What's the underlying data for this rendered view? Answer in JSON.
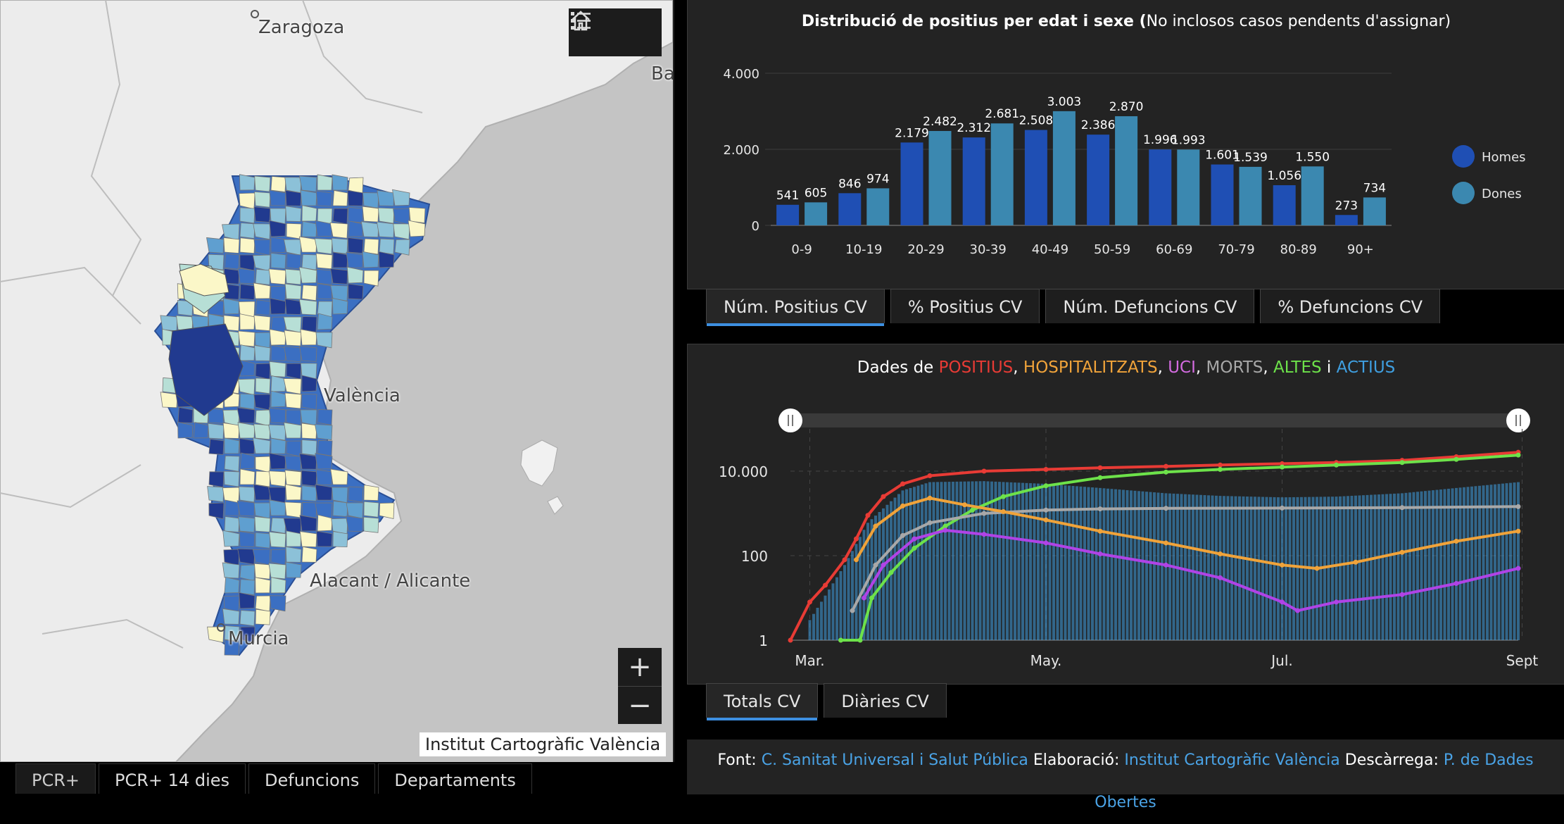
{
  "map": {
    "cities": [
      "Zaragoza",
      "Ba",
      "València",
      "Alacant / Alicante",
      "Murcia"
    ],
    "attribution": "Institut Cartogràfic València",
    "toolbar": {
      "home_icon": "home-icon",
      "legend_icon": "legend-list-icon"
    },
    "zoom": {
      "in_label": "+",
      "out_label": "−"
    },
    "tabs": [
      "PCR+",
      "PCR+ 14 dies",
      "Defuncions",
      "Departaments"
    ],
    "legend_colors": [
      "#fbf7c8",
      "#b7dfd6",
      "#8cc1d8",
      "#5f9fd0",
      "#3b6fc2",
      "#213a8f"
    ]
  },
  "bar_panel": {
    "title_bold": "Distribució de positius per edat i sexe (",
    "title_rest": "No inclosos casos pendents d'assignar)",
    "tabs": [
      "Núm. Positius CV",
      "% Positius CV",
      "Núm. Defuncions CV",
      "% Defuncions CV"
    ],
    "legend": [
      "Homes",
      "Dones"
    ]
  },
  "line_panel": {
    "title_parts": [
      {
        "text": "Dades de ",
        "color": "#ffffff"
      },
      {
        "text": "POSITIUS",
        "color": "#e83b35"
      },
      {
        "text": ", ",
        "color": "#ffffff"
      },
      {
        "text": "HOSPITALITZATS",
        "color": "#f0a33a"
      },
      {
        "text": ", ",
        "color": "#ffffff"
      },
      {
        "text": "UCI",
        "color": "#d36be0"
      },
      {
        "text": ", ",
        "color": "#ffffff"
      },
      {
        "text": "MORTS",
        "color": "#a8a8a8"
      },
      {
        "text": ", ",
        "color": "#ffffff"
      },
      {
        "text": "ALTES",
        "color": "#6de24a"
      },
      {
        "text": " i ",
        "color": "#ffffff"
      },
      {
        "text": "ACTIUS",
        "color": "#3f9fe0"
      }
    ],
    "tabs": [
      "Totals CV",
      "Diàries CV"
    ]
  },
  "footer": {
    "font_label": "Font: ",
    "font_link": "C. Sanitat Universal i Salut Pública",
    "elab_label": " Elaboració: ",
    "elab_link": "Institut Cartogràfic València",
    "desc_label": " Descàrrega: ",
    "desc_link": "P. de Dades Obertes"
  },
  "chart_data": [
    {
      "type": "bar",
      "categories": [
        "0-9",
        "10-19",
        "20-29",
        "30-39",
        "40-49",
        "50-59",
        "60-69",
        "70-79",
        "80-89",
        "90+"
      ],
      "series": [
        {
          "name": "Homes",
          "values": [
            541,
            846,
            2179,
            2312,
            2508,
            2386,
            1996,
            1601,
            1056,
            273
          ],
          "labels": [
            "541",
            "846",
            "2.179",
            "2.312",
            "2.508",
            "2.386",
            "1.996",
            "1.601",
            "1.056",
            "273"
          ],
          "color": "#1f4fb4"
        },
        {
          "name": "Dones",
          "values": [
            605,
            974,
            2482,
            2681,
            3003,
            2870,
            1993,
            1539,
            1550,
            734
          ],
          "labels": [
            "605",
            "974",
            "2.482",
            "2.681",
            "3.003",
            "2.870",
            "1.993",
            "1.539",
            "1.550",
            "734"
          ],
          "color": "#3b88b0"
        }
      ],
      "yticks": [
        0,
        2000,
        4000
      ],
      "ytick_labels": [
        "0",
        "2.000",
        "4.000"
      ],
      "ylim": [
        0,
        4000
      ],
      "legend_position": "right"
    },
    {
      "type": "line",
      "scale": "log",
      "x_ticks": [
        "Mar.",
        "May.",
        "Jul.",
        "Sept"
      ],
      "yticks": [
        1,
        100,
        10000
      ],
      "ytick_labels": [
        "1",
        "100",
        "10.000"
      ],
      "x_range": [
        "2020-02-25",
        "2020-08-31"
      ],
      "series": [
        {
          "name": "POSITIUS",
          "color": "#e83b35",
          "points": [
            [
              "2020-02-25",
              1
            ],
            [
              "2020-03-01",
              8
            ],
            [
              "2020-03-05",
              20
            ],
            [
              "2020-03-10",
              80
            ],
            [
              "2020-03-13",
              250
            ],
            [
              "2020-03-16",
              900
            ],
            [
              "2020-03-20",
              2500
            ],
            [
              "2020-03-25",
              5000
            ],
            [
              "2020-04-01",
              7800
            ],
            [
              "2020-04-15",
              10000
            ],
            [
              "2020-05-01",
              11000
            ],
            [
              "2020-05-15",
              12000
            ],
            [
              "2020-06-01",
              13000
            ],
            [
              "2020-06-15",
              14000
            ],
            [
              "2020-07-01",
              15000
            ],
            [
              "2020-07-15",
              16000
            ],
            [
              "2020-08-01",
              18000
            ],
            [
              "2020-08-15",
              22000
            ],
            [
              "2020-08-31",
              28000
            ]
          ]
        },
        {
          "name": "ALTES",
          "color": "#6de24a",
          "points": [
            [
              "2020-03-09",
              1
            ],
            [
              "2020-03-14",
              1
            ],
            [
              "2020-03-17",
              10
            ],
            [
              "2020-03-22",
              40
            ],
            [
              "2020-03-28",
              150
            ],
            [
              "2020-04-05",
              500
            ],
            [
              "2020-04-12",
              1200
            ],
            [
              "2020-04-20",
              2500
            ],
            [
              "2020-05-01",
              4500
            ],
            [
              "2020-05-15",
              7000
            ],
            [
              "2020-06-01",
              9500
            ],
            [
              "2020-06-15",
              11000
            ],
            [
              "2020-07-01",
              12500
            ],
            [
              "2020-07-15",
              14000
            ],
            [
              "2020-08-01",
              16000
            ],
            [
              "2020-08-15",
              19000
            ],
            [
              "2020-08-31",
              24000
            ]
          ]
        },
        {
          "name": "ACTIUS",
          "color": "#3f9fe0",
          "points": [
            [
              "2020-03-01",
              3
            ],
            [
              "2020-03-10",
              60
            ],
            [
              "2020-03-16",
              600
            ],
            [
              "2020-03-25",
              3500
            ],
            [
              "2020-04-01",
              5500
            ],
            [
              "2020-04-15",
              5800
            ],
            [
              "2020-05-01",
              5000
            ],
            [
              "2020-05-15",
              4000
            ],
            [
              "2020-06-01",
              3000
            ],
            [
              "2020-06-15",
              2600
            ],
            [
              "2020-07-01",
              2400
            ],
            [
              "2020-07-15",
              2500
            ],
            [
              "2020-08-01",
              3000
            ],
            [
              "2020-08-15",
              4000
            ],
            [
              "2020-08-31",
              5500
            ]
          ]
        },
        {
          "name": "HOSPITALITZATS",
          "color": "#f0a33a",
          "points": [
            [
              "2020-03-13",
              80
            ],
            [
              "2020-03-18",
              500
            ],
            [
              "2020-03-25",
              1500
            ],
            [
              "2020-04-01",
              2300
            ],
            [
              "2020-04-10",
              1600
            ],
            [
              "2020-04-20",
              1100
            ],
            [
              "2020-05-01",
              700
            ],
            [
              "2020-05-15",
              380
            ],
            [
              "2020-06-01",
              200
            ],
            [
              "2020-06-15",
              110
            ],
            [
              "2020-07-01",
              60
            ],
            [
              "2020-07-10",
              50
            ],
            [
              "2020-07-20",
              70
            ],
            [
              "2020-08-01",
              120
            ],
            [
              "2020-08-15",
              220
            ],
            [
              "2020-08-31",
              380
            ]
          ]
        },
        {
          "name": "UCI",
          "color": "#b043e6",
          "points": [
            [
              "2020-03-15",
              10
            ],
            [
              "2020-03-20",
              60
            ],
            [
              "2020-03-28",
              250
            ],
            [
              "2020-04-05",
              400
            ],
            [
              "2020-04-15",
              320
            ],
            [
              "2020-05-01",
              200
            ],
            [
              "2020-05-15",
              110
            ],
            [
              "2020-06-01",
              60
            ],
            [
              "2020-06-15",
              30
            ],
            [
              "2020-07-01",
              8
            ],
            [
              "2020-07-05",
              5
            ],
            [
              "2020-07-15",
              8
            ],
            [
              "2020-08-01",
              12
            ],
            [
              "2020-08-15",
              22
            ],
            [
              "2020-08-31",
              50
            ]
          ]
        },
        {
          "name": "MORTS",
          "color": "#a8a8a8",
          "points": [
            [
              "2020-03-12",
              5
            ],
            [
              "2020-03-18",
              60
            ],
            [
              "2020-03-25",
              300
            ],
            [
              "2020-04-01",
              600
            ],
            [
              "2020-04-15",
              1000
            ],
            [
              "2020-05-01",
              1200
            ],
            [
              "2020-05-15",
              1280
            ],
            [
              "2020-06-01",
              1320
            ],
            [
              "2020-07-01",
              1340
            ],
            [
              "2020-08-01",
              1370
            ],
            [
              "2020-08-31",
              1450
            ]
          ]
        }
      ]
    }
  ]
}
